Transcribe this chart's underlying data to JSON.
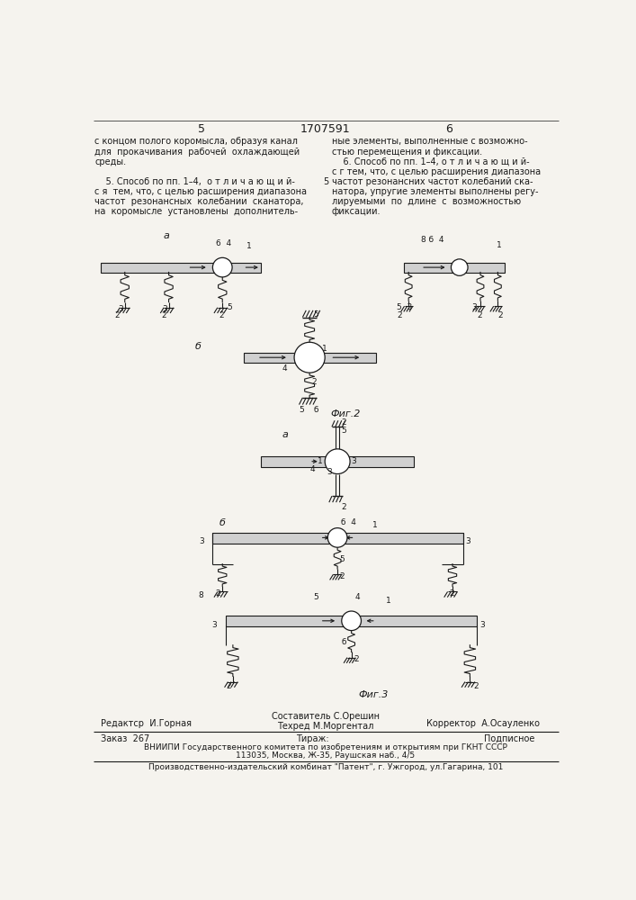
{
  "page_width": 7.07,
  "page_height": 10.0,
  "bg_color": "#f5f3ee",
  "page_num_left": "5",
  "page_num_center": "1707591",
  "page_num_right": "6",
  "left_col_lines": [
    "с концом полого коромысла, образуя канал",
    "для  прокачивания  рабочей  охлаждающей",
    "среды.",
    "",
    "    5. Способ по пп. 1–4,  о т л и ч а ю щ и й-",
    "с я  тем, что, с целью расширения диапазона",
    "частот  резонансных  колебании  сканатора,",
    "на  коромысле  установлены  дополнитель-"
  ],
  "right_col_lines": [
    "ные элементы, выполненные с возможно-",
    "стью перемещения и фиксации.",
    "    6. Способ по пп. 1–4, о т л и ч а ю щ и й-",
    "с г тем, что, с целью расширения диапазона",
    "частот резонансних частот колебаний ска-",
    "натора, упругие элементы выполнены регу-",
    "лируемыми  по  длине  с  возможностью",
    "фиксации."
  ],
  "col_sep_num": "5",
  "col_sep_row": 4,
  "fig2_label": "Фиг.2",
  "fig3_label": "Фиг.3",
  "footer_composer": "Составитель С.Орешин",
  "footer_tech": "Техред М.Моргентал",
  "footer_editor": "Редактср  И.Горная",
  "footer_corrector": "Корректор  А.Осауленко",
  "footer_order": "Заказ  267",
  "footer_tirazh": "Тираж:",
  "footer_podpisnoe": "Подписное",
  "footer_vniiipi": "ВНИИПИ Государственного комитета по изобретениям и открытиям при ГКНТ СССР",
  "footer_address": "113035, Москва, Ж-35, Раушская наб., 4/5",
  "footer_production": "Производственно-издательский комбинат \"Патент\", г. Ужгород, ул.Гагарина, 101",
  "text_color": "#1a1a1a",
  "line_color": "#1a1a1a"
}
